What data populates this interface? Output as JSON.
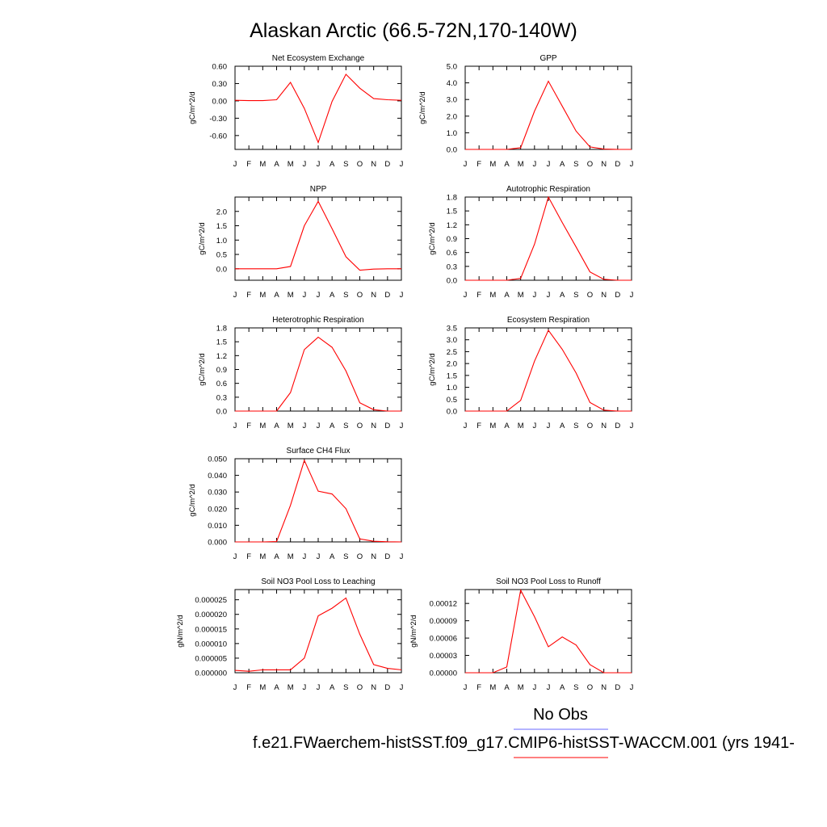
{
  "figure": {
    "title": "Alaskan Arctic (66.5-72N,170-140W)",
    "legend": [
      {
        "label": "No Obs",
        "color": "#6a6aff"
      },
      {
        "label": "f.e21.FWaerchem-histSST.f09_g17.CMIP6-histSST-WACCM.001 (yrs 1941-",
        "color": "#ff0000"
      }
    ]
  },
  "chart_data": [
    {
      "type": "line",
      "title": "Net Ecosystem Exchange",
      "ylabel": "gC/m^2/d",
      "categories": [
        "J",
        "F",
        "M",
        "A",
        "M",
        "J",
        "J",
        "A",
        "S",
        "O",
        "N",
        "D",
        "J"
      ],
      "ylim": [
        -0.84,
        0.6
      ],
      "yticks": [
        0.6,
        0.3,
        0.0,
        -0.3,
        -0.6
      ],
      "ytick_labels": [
        "0.60",
        "0.30",
        "0.00",
        "-0.30",
        "-0.60"
      ],
      "series": [
        {
          "color": "#ff0000",
          "values": [
            0.01,
            0.005,
            0.005,
            0.02,
            0.32,
            -0.13,
            -0.72,
            -0.01,
            0.46,
            0.22,
            0.04,
            0.02,
            0.01
          ]
        }
      ]
    },
    {
      "type": "line",
      "title": "GPP",
      "ylabel": "gC/m^2/d",
      "categories": [
        "J",
        "F",
        "M",
        "A",
        "M",
        "J",
        "J",
        "A",
        "S",
        "O",
        "N",
        "D",
        "J"
      ],
      "ylim": [
        0.0,
        5.0
      ],
      "yticks": [
        0.0,
        1.0,
        2.0,
        3.0,
        4.0,
        5.0
      ],
      "ytick_labels": [
        "0.0",
        "1.0",
        "2.0",
        "3.0",
        "4.0",
        "5.0"
      ],
      "series": [
        {
          "color": "#ff0000",
          "values": [
            0.0,
            0.0,
            0.0,
            0.0,
            0.1,
            2.3,
            4.1,
            2.6,
            1.1,
            0.15,
            0.02,
            0.0,
            0.0
          ]
        }
      ]
    },
    {
      "type": "line",
      "title": "NPP",
      "ylabel": "gC/m^2/d",
      "categories": [
        "J",
        "F",
        "M",
        "A",
        "M",
        "J",
        "J",
        "A",
        "S",
        "O",
        "N",
        "D",
        "J"
      ],
      "ylim": [
        -0.4,
        2.5
      ],
      "yticks": [
        0.0,
        0.5,
        1.0,
        1.5,
        2.0
      ],
      "ytick_labels": [
        "0.0",
        "0.5",
        "1.0",
        "1.5",
        "2.0"
      ],
      "series": [
        {
          "color": "#ff0000",
          "values": [
            0.0,
            0.0,
            0.0,
            0.0,
            0.08,
            1.5,
            2.35,
            1.4,
            0.42,
            -0.05,
            -0.01,
            0.0,
            0.0
          ]
        }
      ]
    },
    {
      "type": "line",
      "title": "Autotrophic Respiration",
      "ylabel": "gC/m^2/d",
      "categories": [
        "J",
        "F",
        "M",
        "A",
        "M",
        "J",
        "J",
        "A",
        "S",
        "O",
        "N",
        "D",
        "J"
      ],
      "ylim": [
        0.0,
        1.8
      ],
      "yticks": [
        0.0,
        0.3,
        0.6,
        0.9,
        1.2,
        1.5,
        1.8
      ],
      "ytick_labels": [
        "0.0",
        "0.3",
        "0.6",
        "0.9",
        "1.2",
        "1.5",
        "1.8"
      ],
      "series": [
        {
          "color": "#ff0000",
          "values": [
            0.0,
            0.0,
            0.0,
            0.0,
            0.04,
            0.78,
            1.8,
            1.25,
            0.72,
            0.18,
            0.02,
            0.0,
            0.0
          ]
        }
      ]
    },
    {
      "type": "line",
      "title": "Heterotrophic Respiration",
      "ylabel": "gC/m^2/d",
      "categories": [
        "J",
        "F",
        "M",
        "A",
        "M",
        "J",
        "J",
        "A",
        "S",
        "O",
        "N",
        "D",
        "J"
      ],
      "ylim": [
        0.0,
        1.8
      ],
      "yticks": [
        0.0,
        0.3,
        0.6,
        0.9,
        1.2,
        1.5,
        1.8
      ],
      "ytick_labels": [
        "0.0",
        "0.3",
        "0.6",
        "0.9",
        "1.2",
        "1.5",
        "1.8"
      ],
      "series": [
        {
          "color": "#ff0000",
          "values": [
            0.0,
            0.0,
            0.0,
            0.0,
            0.4,
            1.33,
            1.6,
            1.38,
            0.87,
            0.18,
            0.03,
            0.0,
            0.0
          ]
        }
      ]
    },
    {
      "type": "line",
      "title": "Ecosystem Respiration",
      "ylabel": "gC/m^2/d",
      "categories": [
        "J",
        "F",
        "M",
        "A",
        "M",
        "J",
        "J",
        "A",
        "S",
        "O",
        "N",
        "D",
        "J"
      ],
      "ylim": [
        0.0,
        3.5
      ],
      "yticks": [
        0.0,
        0.5,
        1.0,
        1.5,
        2.0,
        2.5,
        3.0,
        3.5
      ],
      "ytick_labels": [
        "0.0",
        "0.5",
        "1.0",
        "1.5",
        "2.0",
        "2.5",
        "3.0",
        "3.5"
      ],
      "series": [
        {
          "color": "#ff0000",
          "values": [
            0.0,
            0.0,
            0.0,
            0.0,
            0.45,
            2.1,
            3.4,
            2.6,
            1.6,
            0.36,
            0.04,
            0.0,
            0.0
          ]
        }
      ]
    },
    {
      "type": "line",
      "title": "Surface CH4 Flux",
      "ylabel": "gC/m^2/d",
      "categories": [
        "J",
        "F",
        "M",
        "A",
        "M",
        "J",
        "J",
        "A",
        "S",
        "O",
        "N",
        "D",
        "J"
      ],
      "ylim": [
        0.0,
        0.05
      ],
      "yticks": [
        0.0,
        0.01,
        0.02,
        0.03,
        0.04,
        0.05
      ],
      "ytick_labels": [
        "0.000",
        "0.010",
        "0.020",
        "0.030",
        "0.040",
        "0.050"
      ],
      "series": [
        {
          "color": "#ff0000",
          "values": [
            0.0,
            0.0,
            0.0,
            0.0002,
            0.022,
            0.049,
            0.0305,
            0.0288,
            0.02,
            0.0018,
            0.0004,
            0.0001,
            0.0
          ]
        }
      ]
    },
    {
      "type": "line",
      "title": "Soil NO3 Pool Loss to Leaching",
      "ylabel": "gN/m^2/d",
      "categories": [
        "J",
        "F",
        "M",
        "A",
        "M",
        "J",
        "J",
        "A",
        "S",
        "O",
        "N",
        "D",
        "J"
      ],
      "ylim": [
        0.0,
        2.85e-05
      ],
      "yticks": [
        0.0,
        5e-06,
        1e-05,
        1.5e-05,
        2e-05,
        2.5e-05
      ],
      "ytick_labels": [
        "0.000000",
        "0.000005",
        "0.000010",
        "0.000015",
        "0.000020",
        "0.000025"
      ],
      "series": [
        {
          "color": "#ff0000",
          "values": [
            8e-07,
            5e-07,
            1e-06,
            1e-06,
            1e-06,
            5e-06,
            1.95e-05,
            2.21e-05,
            2.56e-05,
            1.32e-05,
            2.8e-06,
            1.5e-06,
            1e-06
          ]
        }
      ]
    },
    {
      "type": "line",
      "title": "Soil NO3 Pool Loss to Runoff",
      "ylabel": "gN/m^2/d",
      "categories": [
        "J",
        "F",
        "M",
        "A",
        "M",
        "J",
        "J",
        "A",
        "S",
        "O",
        "N",
        "D",
        "J"
      ],
      "ylim": [
        0.0,
        0.000144
      ],
      "yticks": [
        0.0,
        3e-05,
        6e-05,
        9e-05,
        0.00012
      ],
      "ytick_labels": [
        "0.00000",
        "0.00003",
        "0.00006",
        "0.00009",
        "0.00012"
      ],
      "series": [
        {
          "color": "#ff0000",
          "values": [
            0.0,
            0.0,
            0.0,
            1e-05,
            0.000143,
            9.7e-05,
            4.5e-05,
            6.2e-05,
            4.8e-05,
            1.4e-05,
            0.0,
            0.0,
            0.0
          ]
        }
      ]
    }
  ]
}
